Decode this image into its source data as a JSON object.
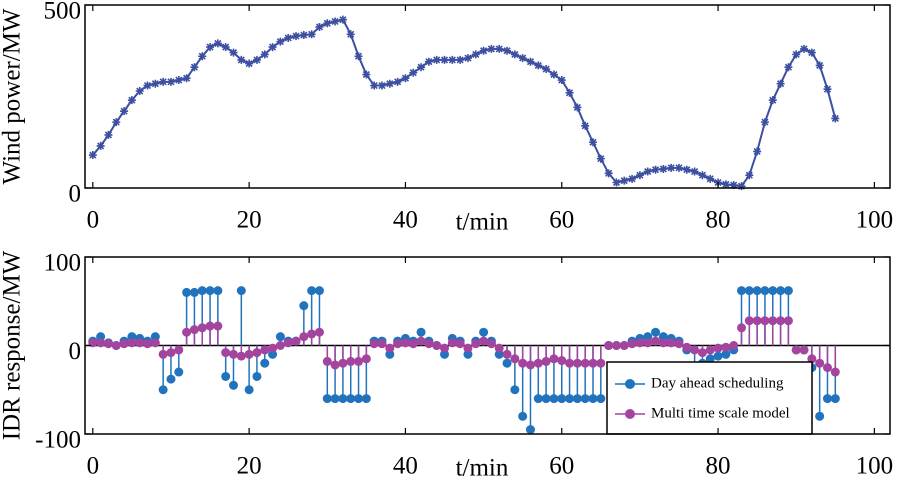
{
  "chart_data": [
    {
      "type": "line",
      "ylabel": "Wind power/MW",
      "xlabel": "t/min",
      "x": [
        0,
        1,
        2,
        3,
        4,
        5,
        6,
        7,
        8,
        9,
        10,
        11,
        12,
        13,
        14,
        15,
        16,
        17,
        18,
        19,
        20,
        21,
        22,
        23,
        24,
        25,
        26,
        27,
        28,
        29,
        30,
        31,
        32,
        33,
        34,
        35,
        36,
        37,
        38,
        39,
        40,
        41,
        42,
        43,
        44,
        45,
        46,
        47,
        48,
        49,
        50,
        51,
        52,
        53,
        54,
        55,
        56,
        57,
        58,
        59,
        60,
        61,
        62,
        63,
        64,
        65,
        66,
        67,
        68,
        69,
        70,
        71,
        72,
        73,
        74,
        75,
        76,
        77,
        78,
        79,
        80,
        81,
        82,
        83,
        84,
        85,
        86,
        87,
        88,
        89,
        90,
        91,
        92,
        93,
        94,
        95
      ],
      "series": [
        {
          "color": "#3d4fa0",
          "values": [
            90,
            115,
            145,
            180,
            210,
            240,
            265,
            280,
            285,
            290,
            290,
            295,
            300,
            330,
            360,
            385,
            395,
            385,
            370,
            350,
            340,
            350,
            365,
            385,
            400,
            410,
            415,
            418,
            420,
            440,
            450,
            455,
            460,
            420,
            360,
            310,
            280,
            280,
            285,
            290,
            300,
            315,
            330,
            345,
            350,
            350,
            350,
            350,
            355,
            365,
            375,
            380,
            380,
            375,
            365,
            355,
            345,
            335,
            325,
            310,
            295,
            260,
            220,
            170,
            125,
            80,
            40,
            15,
            20,
            25,
            35,
            45,
            50,
            52,
            55,
            55,
            50,
            45,
            35,
            25,
            15,
            10,
            8,
            5,
            35,
            100,
            180,
            240,
            285,
            330,
            365,
            380,
            370,
            335,
            270,
            190
          ]
        }
      ],
      "xlim": [
        -1,
        102
      ],
      "xticks": [
        0,
        20,
        40,
        60,
        80,
        100
      ],
      "ylim": [
        0,
        500
      ],
      "yticks": [
        0,
        500
      ]
    },
    {
      "type": "stem",
      "ylabel": "IDR response/MW",
      "xlabel": "t/min",
      "legend": "lower right",
      "x": [
        0,
        1,
        2,
        3,
        4,
        5,
        6,
        7,
        8,
        9,
        10,
        11,
        12,
        13,
        14,
        15,
        16,
        17,
        18,
        19,
        20,
        21,
        22,
        23,
        24,
        25,
        26,
        27,
        28,
        29,
        30,
        31,
        32,
        33,
        34,
        35,
        36,
        37,
        38,
        39,
        40,
        41,
        42,
        43,
        44,
        45,
        46,
        47,
        48,
        49,
        50,
        51,
        52,
        53,
        54,
        55,
        56,
        57,
        58,
        59,
        60,
        61,
        62,
        63,
        64,
        65,
        66,
        67,
        68,
        69,
        70,
        71,
        72,
        73,
        74,
        75,
        76,
        77,
        78,
        79,
        80,
        81,
        82,
        83,
        84,
        85,
        86,
        87,
        88,
        89,
        90,
        91,
        92,
        93,
        94,
        95
      ],
      "series": [
        {
          "name": "Day ahead scheduling",
          "color": "#2273bd",
          "values": [
            5,
            10,
            3,
            0,
            5,
            10,
            8,
            5,
            10,
            -50,
            -38,
            -30,
            60,
            60,
            62,
            62,
            62,
            -35,
            -45,
            62,
            -50,
            -35,
            -20,
            -10,
            10,
            5,
            5,
            45,
            62,
            62,
            -60,
            -60,
            -60,
            -60,
            -60,
            -60,
            5,
            5,
            -10,
            5,
            8,
            5,
            15,
            5,
            0,
            -10,
            8,
            5,
            -10,
            5,
            15,
            5,
            -10,
            -20,
            -50,
            -80,
            -95,
            -60,
            -60,
            -60,
            -60,
            -60,
            -60,
            -60,
            -60,
            -60,
            0,
            0,
            0,
            5,
            8,
            10,
            15,
            10,
            8,
            5,
            -5,
            -25,
            -20,
            -15,
            -12,
            -10,
            -5,
            62,
            62,
            62,
            62,
            62,
            62,
            62,
            -5,
            -5,
            -25,
            -80,
            -60,
            -60
          ]
        },
        {
          "name": "Multi time scale model",
          "color": "#a3449e",
          "values": [
            3,
            3,
            2,
            0,
            2,
            3,
            3,
            2,
            3,
            -10,
            -8,
            -5,
            15,
            18,
            20,
            22,
            22,
            -8,
            -10,
            -12,
            -10,
            -8,
            -5,
            -3,
            0,
            3,
            5,
            10,
            13,
            15,
            -18,
            -22,
            -20,
            -18,
            -18,
            -15,
            2,
            2,
            -3,
            2,
            3,
            2,
            5,
            2,
            0,
            -3,
            3,
            2,
            -3,
            2,
            5,
            2,
            -3,
            -10,
            -15,
            -20,
            -22,
            -20,
            -18,
            -15,
            -17,
            -20,
            -20,
            -20,
            -20,
            -20,
            0,
            0,
            0,
            2,
            3,
            3,
            5,
            3,
            3,
            2,
            -2,
            -5,
            -8,
            -5,
            -3,
            -2,
            0,
            20,
            28,
            28,
            28,
            28,
            28,
            28,
            -5,
            -5,
            -15,
            -20,
            -25,
            -30
          ]
        }
      ],
      "xlim": [
        -1,
        102
      ],
      "xticks": [
        0,
        20,
        40,
        60,
        80,
        100
      ],
      "ylim": [
        -100,
        100
      ],
      "yticks": [
        -100,
        0,
        100
      ]
    }
  ]
}
